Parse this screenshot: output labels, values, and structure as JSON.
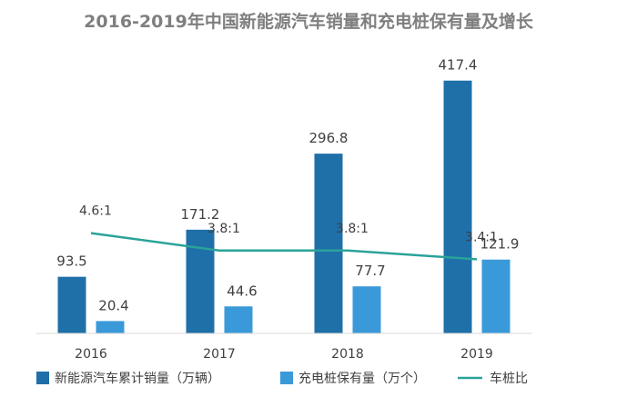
{
  "chart_data": {
    "type": "bar",
    "title": "2016-2019年中国新能源汽车销量和充电桩保有量及增长",
    "categories": [
      "2016",
      "2017",
      "2018",
      "2019"
    ],
    "series": [
      {
        "name": "新能源汽车累计销量（万辆）",
        "type": "bar",
        "color": "#1f6fa8",
        "values": [
          93.5,
          171.2,
          296.8,
          417.4
        ],
        "labels": [
          "93.5",
          "171.2",
          "296.8",
          "417.4"
        ]
      },
      {
        "name": "充电桩保有量（万个）",
        "type": "bar",
        "color": "#3a9ad9",
        "values": [
          20.4,
          44.6,
          77.7,
          121.9
        ],
        "labels": [
          "20.4",
          "44.6",
          "77.7",
          "121.9"
        ]
      },
      {
        "name": "车桩比",
        "type": "line",
        "color": "#2aa39a",
        "values": [
          4.6,
          3.8,
          3.8,
          3.4
        ],
        "labels": [
          "4.6:1",
          "3.8:1",
          "3.8:1",
          "3.4:1"
        ]
      }
    ],
    "ylim": [
      0,
      450
    ],
    "ratio_ylim": [
      0,
      12.5
    ],
    "xlabel": "",
    "ylabel": "",
    "grid": false,
    "legend": "bottom"
  }
}
